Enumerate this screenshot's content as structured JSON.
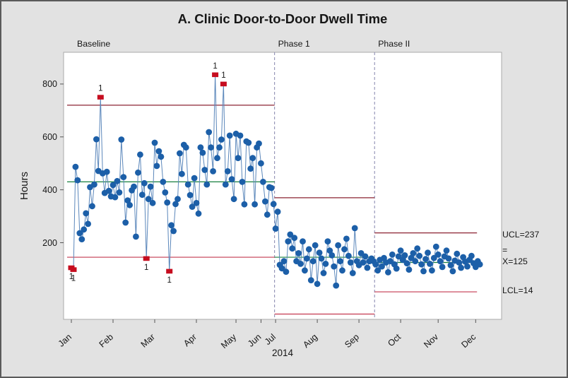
{
  "window": {
    "title": "A. Clinic Door-to-Door Dwell Time"
  },
  "chart_data": {
    "type": "line",
    "subtype": "individuals-control-chart",
    "title": "A. Clinic Door-to-Door Dwell Time",
    "xlabel": "2014",
    "ylabel": "Hours",
    "legend_position": "none",
    "grid": false,
    "ylim": [
      -90,
      920
    ],
    "y_ticks": [
      200,
      400,
      600,
      800
    ],
    "x_month_ticks": [
      {
        "label": "Jan",
        "obs": 0
      },
      {
        "label": "Feb",
        "obs": 20
      },
      {
        "label": "Mar",
        "obs": 40
      },
      {
        "label": "Apr",
        "obs": 60
      },
      {
        "label": "May",
        "obs": 79
      },
      {
        "label": "Jun",
        "obs": 91
      },
      {
        "label": "Jul",
        "obs": 98
      },
      {
        "label": "Aug",
        "obs": 118
      },
      {
        "label": "Sep",
        "obs": 138
      },
      {
        "label": "Oct",
        "obs": 158
      },
      {
        "label": "Nov",
        "obs": 176
      },
      {
        "label": "Dec",
        "obs": 194
      }
    ],
    "phases": [
      {
        "label": "Baseline",
        "start_obs": 0,
        "end_obs": 97,
        "ucl": 720,
        "center": 430,
        "lcl": 145
      },
      {
        "label": "Phase 1",
        "start_obs": 98,
        "end_obs": 145,
        "ucl": 370,
        "center": 145,
        "lcl": -70
      },
      {
        "label": "Phase II",
        "start_obs": 146,
        "end_obs": 196,
        "ucl": 237,
        "center": 125,
        "lcl": 14
      }
    ],
    "limit_annotations": {
      "ucl": "UCL=237",
      "xbar_top": "=",
      "xbar": "X=125",
      "lcl": "LCL=14"
    },
    "values": [
      105,
      98,
      487,
      436,
      236,
      213,
      250,
      311,
      271,
      410,
      338,
      420,
      591,
      471,
      750,
      462,
      388,
      468,
      396,
      375,
      418,
      372,
      433,
      390,
      590,
      448,
      276,
      360,
      342,
      398,
      412,
      223,
      465,
      533,
      381,
      425,
      140,
      365,
      412,
      350,
      578,
      490,
      546,
      525,
      430,
      390,
      352,
      92,
      266,
      244,
      346,
      365,
      538,
      460,
      570,
      560,
      420,
      380,
      336,
      444,
      350,
      310,
      560,
      540,
      475,
      420,
      618,
      560,
      470,
      835,
      520,
      560,
      590,
      800,
      420,
      470,
      605,
      440,
      365,
      612,
      520,
      605,
      430,
      345,
      583,
      578,
      480,
      520,
      345,
      560,
      575,
      500,
      430,
      356,
      306,
      410,
      407,
      346,
      253,
      317,
      116,
      103,
      130,
      90,
      205,
      231,
      178,
      218,
      130,
      160,
      120,
      205,
      95,
      140,
      175,
      58,
      130,
      190,
      44,
      162,
      140,
      85,
      120,
      205,
      170,
      152,
      110,
      38,
      190,
      130,
      95,
      175,
      215,
      150,
      125,
      85,
      255,
      130,
      115,
      160,
      125,
      148,
      105,
      130,
      140,
      130,
      118,
      95,
      135,
      110,
      142,
      125,
      88,
      130,
      155,
      118,
      102,
      148,
      170,
      135,
      152,
      122,
      98,
      142,
      160,
      130,
      178,
      150,
      118,
      92,
      138,
      162,
      120,
      95,
      142,
      185,
      155,
      130,
      108,
      148,
      170,
      140,
      115,
      92,
      132,
      158,
      125,
      105,
      145,
      128,
      110,
      135,
      150,
      122,
      108,
      130,
      118
    ],
    "out_of_control": [
      {
        "index": 0,
        "label": "1"
      },
      {
        "index": 1,
        "label": "1"
      },
      {
        "index": 14,
        "label": "1"
      },
      {
        "index": 36,
        "label": "1"
      },
      {
        "index": 47,
        "label": "1"
      },
      {
        "index": 69,
        "label": "1"
      },
      {
        "index": 73,
        "label": "1"
      }
    ],
    "colors": {
      "background": "#e2e2e2",
      "plot_background": "#ffffff",
      "plot_border": "#ababab",
      "point": "#1c5fa8",
      "connector": "#5b87bb",
      "limit_upper": "#8c2332",
      "limit_lower": "#c43a50",
      "center_line": "#17803f",
      "flag_marker": "#c60d1f",
      "phase_divider": "#8f8fb4",
      "tick": "#555555"
    }
  }
}
